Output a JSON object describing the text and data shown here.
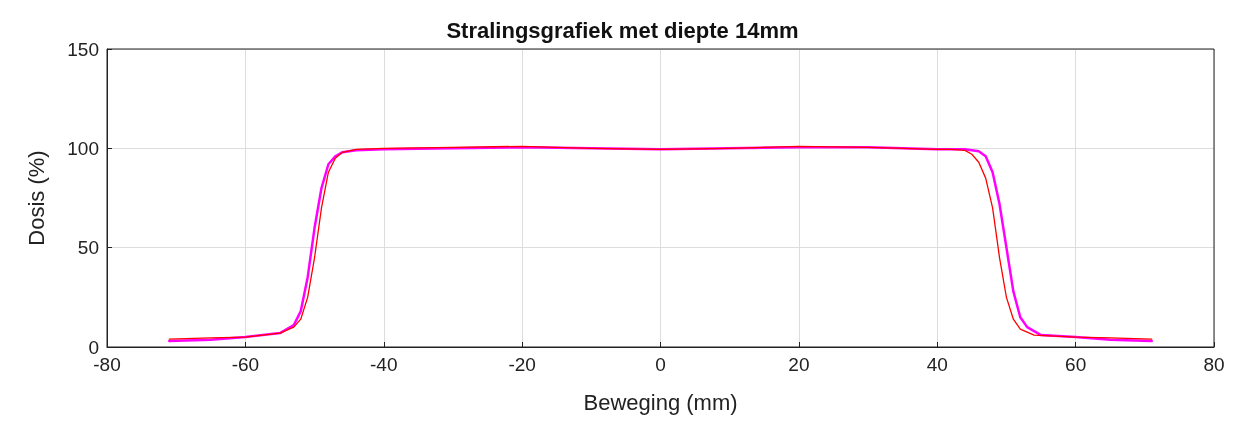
{
  "chart_data": {
    "type": "line",
    "title": "Stralingsgrafiek met diepte 14mm",
    "xlabel": "Beweging (mm)",
    "ylabel": "Dosis (%)",
    "xlim": [
      -80,
      80
    ],
    "xticks": [
      -80,
      -60,
      -40,
      -20,
      0,
      20,
      40,
      60,
      80
    ],
    "ylim": [
      0,
      150
    ],
    "yticks": [
      0,
      50,
      100,
      150
    ],
    "grid": true,
    "marker": "none",
    "line_style": "solid",
    "series": [
      {
        "color": "#ff00ff",
        "x": [
          -71,
          -65,
          -60,
          -55,
          -53,
          -52,
          -51,
          -50,
          -49,
          -48,
          -47,
          -46,
          -44,
          -40,
          -30,
          -20,
          -10,
          0,
          10,
          20,
          30,
          40,
          44,
          46,
          47,
          48,
          49,
          50,
          51,
          52,
          53,
          55,
          60,
          65,
          71
        ],
        "values": [
          3,
          3.6,
          5,
          7,
          11,
          18,
          35,
          60,
          80,
          92,
          96,
          98,
          99,
          99.5,
          100,
          100.5,
          100,
          99.5,
          100,
          100.5,
          100.5,
          99.5,
          99.5,
          98.5,
          96,
          88,
          72,
          50,
          28,
          15,
          10,
          6,
          5,
          3.6,
          3
        ]
      },
      {
        "color": "#ff0000",
        "x": [
          -71,
          -65,
          -60,
          -55,
          -53,
          -52,
          -51,
          -50,
          -49,
          -48,
          -47,
          -46,
          -44,
          -40,
          -30,
          -20,
          -10,
          0,
          10,
          20,
          30,
          40,
          42,
          44,
          45,
          46,
          47,
          48,
          49,
          50,
          51,
          52,
          54,
          60,
          65,
          71
        ],
        "values": [
          4,
          4.6,
          5,
          7,
          10,
          14,
          25,
          45,
          70,
          88,
          95,
          98,
          99.5,
          100,
          100.5,
          101,
          100,
          99.5,
          100,
          101,
          100.5,
          99.5,
          99.5,
          99,
          97,
          93,
          85,
          70,
          45,
          25,
          14,
          9,
          6,
          5,
          4.6,
          4
        ]
      }
    ]
  }
}
